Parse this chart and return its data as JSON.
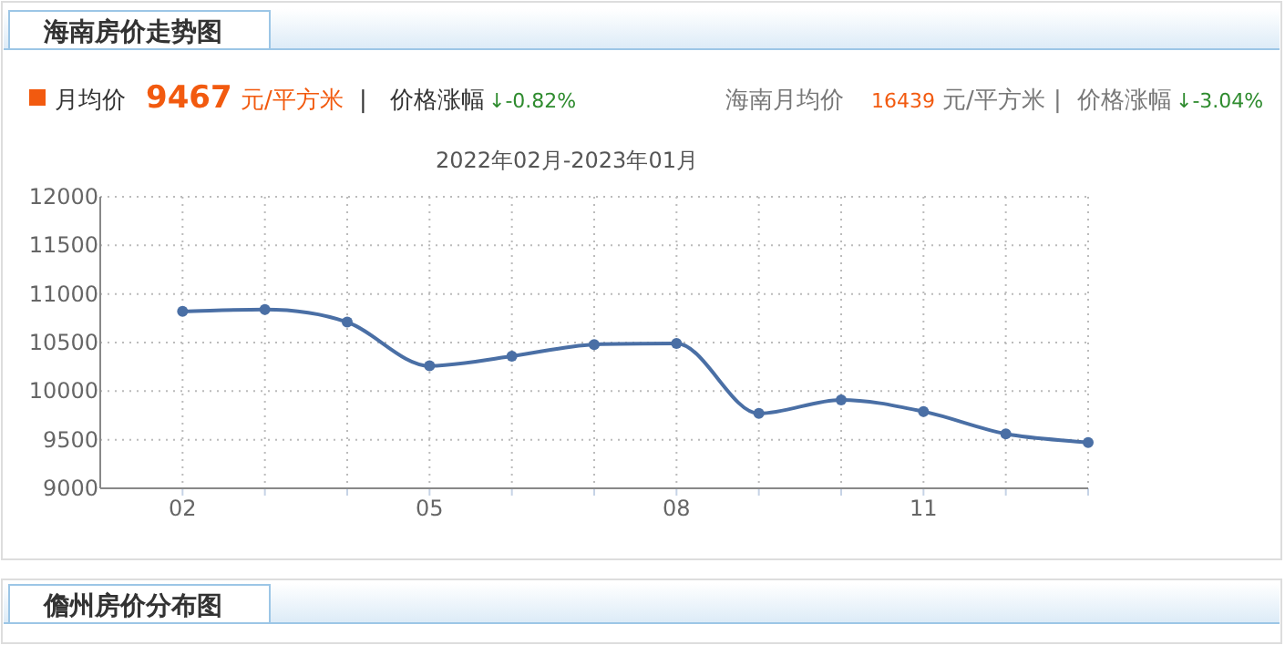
{
  "chart_data": {
    "type": "line",
    "title": "海南房价走势图",
    "subtitle": "2022年02月-2023年01月",
    "annotations": [
      "月均价",
      "9467",
      "元/平方米",
      "|",
      "价格涨幅",
      "↓-0.82%",
      "海南月均价",
      "16439",
      "元/平方米",
      "|",
      "价格涨幅",
      "↓-3.04%",
      "儋州房价分布图"
    ],
    "categories": [
      "02",
      null,
      null,
      "05",
      null,
      null,
      "08",
      null,
      null,
      "11",
      null,
      null
    ],
    "series": [
      {
        "color": "#4a6fa5",
        "values": [
          10820,
          10840,
          10710,
          10260,
          10360,
          10480,
          10490,
          9770,
          9910,
          9790,
          9560,
          9470
        ]
      }
    ],
    "ylim": [
      9000,
      12000
    ],
    "yticks": [
      9000,
      9500,
      10000,
      10500,
      11000,
      11500,
      12000
    ],
    "grid": true,
    "marker": "circle",
    "line_style": "solid"
  }
}
